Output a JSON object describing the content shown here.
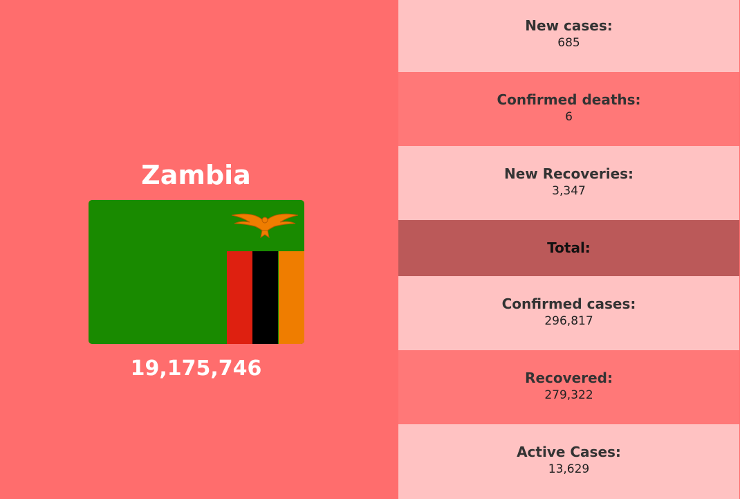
{
  "country": {
    "name": "Zambia",
    "population": "19,175,746",
    "flag": {
      "icon": "zambia-flag-icon",
      "colors": {
        "green": "#198a00",
        "red": "#de2010",
        "black": "#000000",
        "orange": "#ef7d00"
      }
    }
  },
  "daily": {
    "new_cases": {
      "label": "New cases:",
      "value": "685"
    },
    "confirmed_deaths": {
      "label": "Confirmed deaths:",
      "value": "6"
    },
    "new_recoveries": {
      "label": "New Recoveries:",
      "value": "3,347"
    }
  },
  "total": {
    "heading": "Total:",
    "confirmed_cases": {
      "label": "Confirmed cases:",
      "value": "296,817"
    },
    "recovered": {
      "label": "Recovered:",
      "value": "279,322"
    },
    "active_cases": {
      "label": "Active Cases:",
      "value": "13,629"
    }
  },
  "colors": {
    "left_background": "#ff6d6d",
    "row_light": "#ffc2c2",
    "row_medium": "#ff7878",
    "total_header": "#bb5959"
  }
}
